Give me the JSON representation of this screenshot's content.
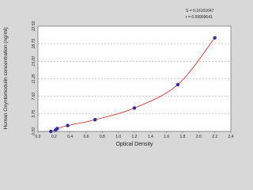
{
  "chart_data": {
    "type": "scatter",
    "x_label": "Optical Density",
    "y_label": "Human Oxyntomodulin  concentration (ng/ml)",
    "annotations": [
      "S = 0.16101647",
      "r = 0.99999641"
    ],
    "series": [
      {
        "color": "#2e2e9e",
        "line_color": "#cc2020",
        "x": [
          0.16,
          0.22,
          0.24,
          0.37,
          0.71,
          1.2,
          1.74,
          2.2
        ],
        "values": [
          0,
          0.31,
          0.62,
          1.25,
          2.5,
          5,
          10,
          20
        ]
      }
    ],
    "xlim": [
      0,
      2.4
    ],
    "xticks": [
      {
        "value": 0,
        "label": "0.0"
      },
      0.2,
      0.4,
      0.6,
      0.8,
      {
        "value": 1,
        "label": "1.0"
      },
      1.2,
      1.4,
      1.6,
      1.8,
      {
        "value": 2,
        "label": "2.0"
      },
      2.2,
      2.4
    ],
    "ylim": [
      0,
      22.5
    ],
    "yticks": [
      {
        "value": 0,
        "label": "0.00"
      },
      3.75,
      {
        "value": 7.5,
        "label": "7.50"
      },
      11.25,
      {
        "value": 15,
        "label": "15.00"
      },
      18.75,
      {
        "value": 22.5,
        "label": "22.50"
      }
    ],
    "grid": true
  }
}
